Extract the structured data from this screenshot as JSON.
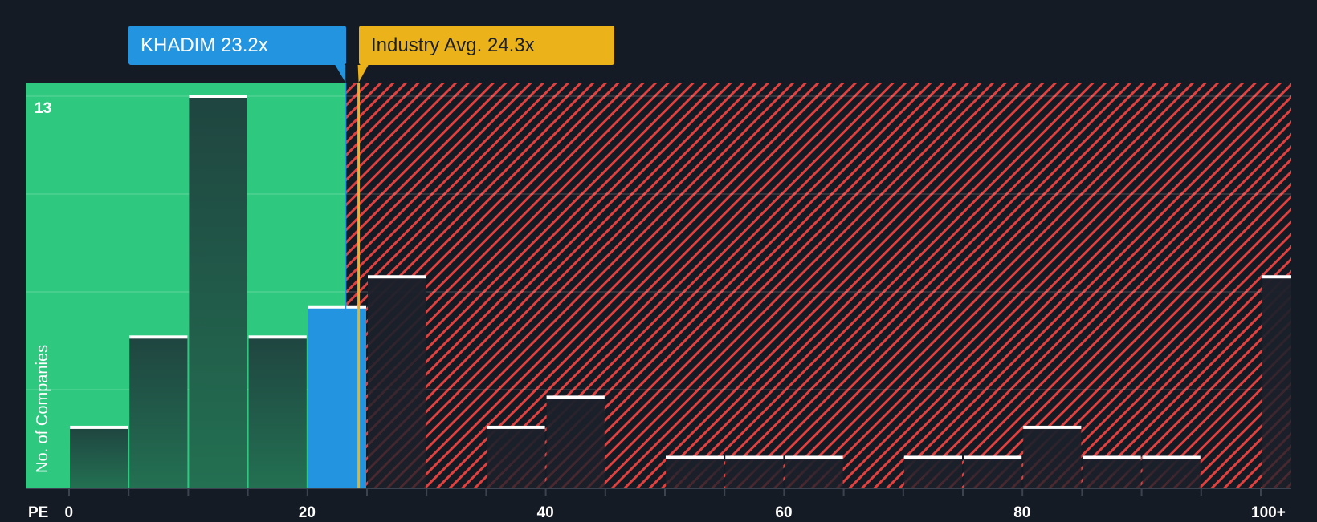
{
  "labels": {
    "company": "KHADIM 23.2x",
    "industry": "Industry Avg. 24.3x"
  },
  "colors": {
    "background": "#151b24",
    "good_zone": "#2ec97f",
    "bad_zone_stripe": "#e0413f",
    "company": "#2394df",
    "industry": "#ebb21a",
    "bar_green": "#1f4a3f",
    "bar_dark": "#1c212b"
  },
  "chart_data": {
    "type": "bar",
    "title": "",
    "xlabel": "PE",
    "ylabel": "No. of Companies",
    "x_tick_labels": [
      "0",
      "20",
      "40",
      "60",
      "80",
      "100+"
    ],
    "y_tick_labels": [
      "13"
    ],
    "ylim": [
      0,
      13.5
    ],
    "grid": true,
    "bin_width": 5,
    "categories": [
      "0-5",
      "5-10",
      "10-15",
      "15-20",
      "20-25",
      "25-30",
      "30-35",
      "35-40",
      "40-45",
      "45-50",
      "50-55",
      "55-60",
      "60-65",
      "65-70",
      "70-75",
      "75-80",
      "80-85",
      "85-90",
      "90-95",
      "95-100",
      "100+"
    ],
    "values": [
      2,
      5,
      13,
      5,
      6,
      7,
      0,
      2,
      3,
      0,
      1,
      1,
      1,
      0,
      1,
      1,
      2,
      1,
      1,
      0,
      7
    ],
    "highlight_bin": "20-25",
    "markers": [
      {
        "name": "KHADIM",
        "value": 23.2,
        "label": "KHADIM 23.2x"
      },
      {
        "name": "Industry Avg.",
        "value": 24.3,
        "label": "Industry Avg. 24.3x"
      }
    ]
  }
}
